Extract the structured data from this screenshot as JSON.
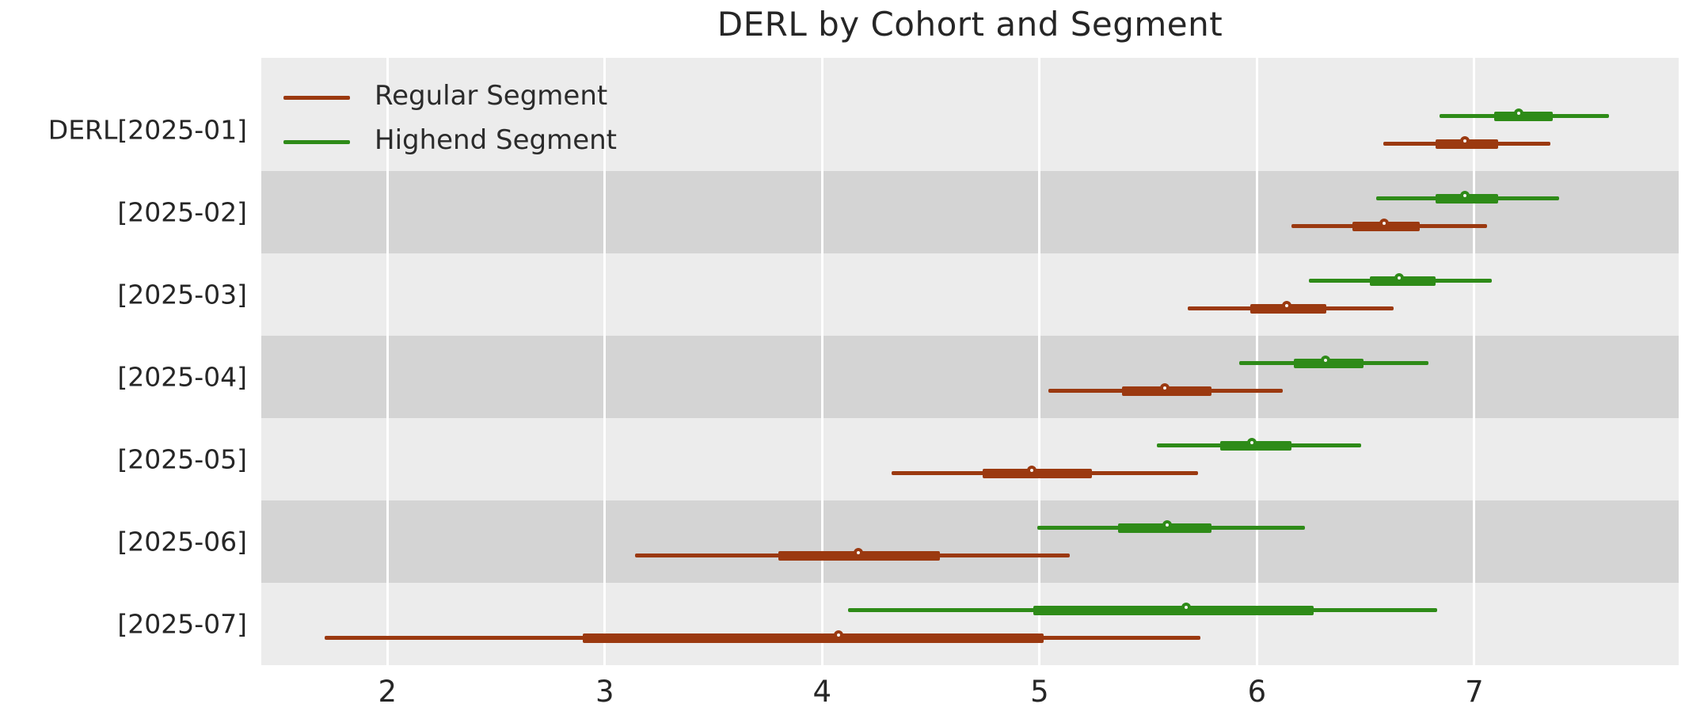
{
  "title": "DERL by Cohort and Segment",
  "colors": {
    "regular": "#9b3910",
    "highend": "#2e8b18",
    "plot_background": "#ececec",
    "alt_band": "#d4d4d4",
    "gridline": "#ffffff",
    "text": "#262626",
    "marker_fill": "#f7f4f1"
  },
  "legend": {
    "items": [
      {
        "key": "regular",
        "label": "Regular Segment"
      },
      {
        "key": "highend",
        "label": "Highend Segment"
      }
    ]
  },
  "x_axis": {
    "ticks": [
      "2",
      "3",
      "4",
      "5",
      "6",
      "7"
    ]
  },
  "y_axis": {
    "labels": [
      "DERL[2025-01]",
      "[2025-02]",
      "[2025-03]",
      "[2025-04]",
      "[2025-05]",
      "[2025-06]",
      "[2025-07]"
    ]
  },
  "chart_data": {
    "type": "pointrange",
    "title": "DERL by Cohort and Segment",
    "categories": [
      "DERL[2025-01]",
      "[2025-02]",
      "[2025-03]",
      "[2025-04]",
      "[2025-05]",
      "[2025-06]",
      "[2025-07]"
    ],
    "xlim": [
      1.42,
      7.94
    ],
    "xticks": [
      2,
      3,
      4,
      5,
      6,
      7
    ],
    "grid": "vertical white gridlines on gray background, alternating darker row bands",
    "legend_position": "upper left inside plot",
    "series": [
      {
        "name": "Highend Segment",
        "color": "#2e8b18",
        "points": [
          {
            "cohort": "DERL[2025-01]",
            "lo": 6.84,
            "q1": 7.09,
            "mid": 7.22,
            "q3": 7.36,
            "hi": 7.62
          },
          {
            "cohort": "[2025-02]",
            "lo": 6.55,
            "q1": 6.82,
            "mid": 6.97,
            "q3": 7.11,
            "hi": 7.39
          },
          {
            "cohort": "[2025-03]",
            "lo": 6.24,
            "q1": 6.52,
            "mid": 6.67,
            "q3": 6.82,
            "hi": 7.08
          },
          {
            "cohort": "[2025-04]",
            "lo": 5.92,
            "q1": 6.17,
            "mid": 6.33,
            "q3": 6.49,
            "hi": 6.79
          },
          {
            "cohort": "[2025-05]",
            "lo": 5.54,
            "q1": 5.83,
            "mid": 5.99,
            "q3": 6.16,
            "hi": 6.48
          },
          {
            "cohort": "[2025-06]",
            "lo": 4.99,
            "q1": 5.36,
            "mid": 5.6,
            "q3": 5.79,
            "hi": 6.22
          },
          {
            "cohort": "[2025-07]",
            "lo": 4.12,
            "q1": 4.97,
            "mid": 5.69,
            "q3": 6.26,
            "hi": 6.83
          }
        ]
      },
      {
        "name": "Regular Segment",
        "color": "#9b3910",
        "points": [
          {
            "cohort": "DERL[2025-01]",
            "lo": 6.58,
            "q1": 6.82,
            "mid": 6.97,
            "q3": 7.11,
            "hi": 7.35
          },
          {
            "cohort": "[2025-02]",
            "lo": 6.16,
            "q1": 6.44,
            "mid": 6.6,
            "q3": 6.75,
            "hi": 7.06
          },
          {
            "cohort": "[2025-03]",
            "lo": 5.68,
            "q1": 5.97,
            "mid": 6.15,
            "q3": 6.32,
            "hi": 6.63
          },
          {
            "cohort": "[2025-04]",
            "lo": 5.04,
            "q1": 5.38,
            "mid": 5.59,
            "q3": 5.79,
            "hi": 6.12
          },
          {
            "cohort": "[2025-05]",
            "lo": 4.32,
            "q1": 4.74,
            "mid": 4.98,
            "q3": 5.24,
            "hi": 5.73
          },
          {
            "cohort": "[2025-06]",
            "lo": 3.14,
            "q1": 3.8,
            "mid": 4.18,
            "q3": 4.54,
            "hi": 5.14
          },
          {
            "cohort": "[2025-07]",
            "lo": 1.71,
            "q1": 2.9,
            "mid": 4.09,
            "q3": 5.02,
            "hi": 5.74
          }
        ]
      }
    ]
  }
}
